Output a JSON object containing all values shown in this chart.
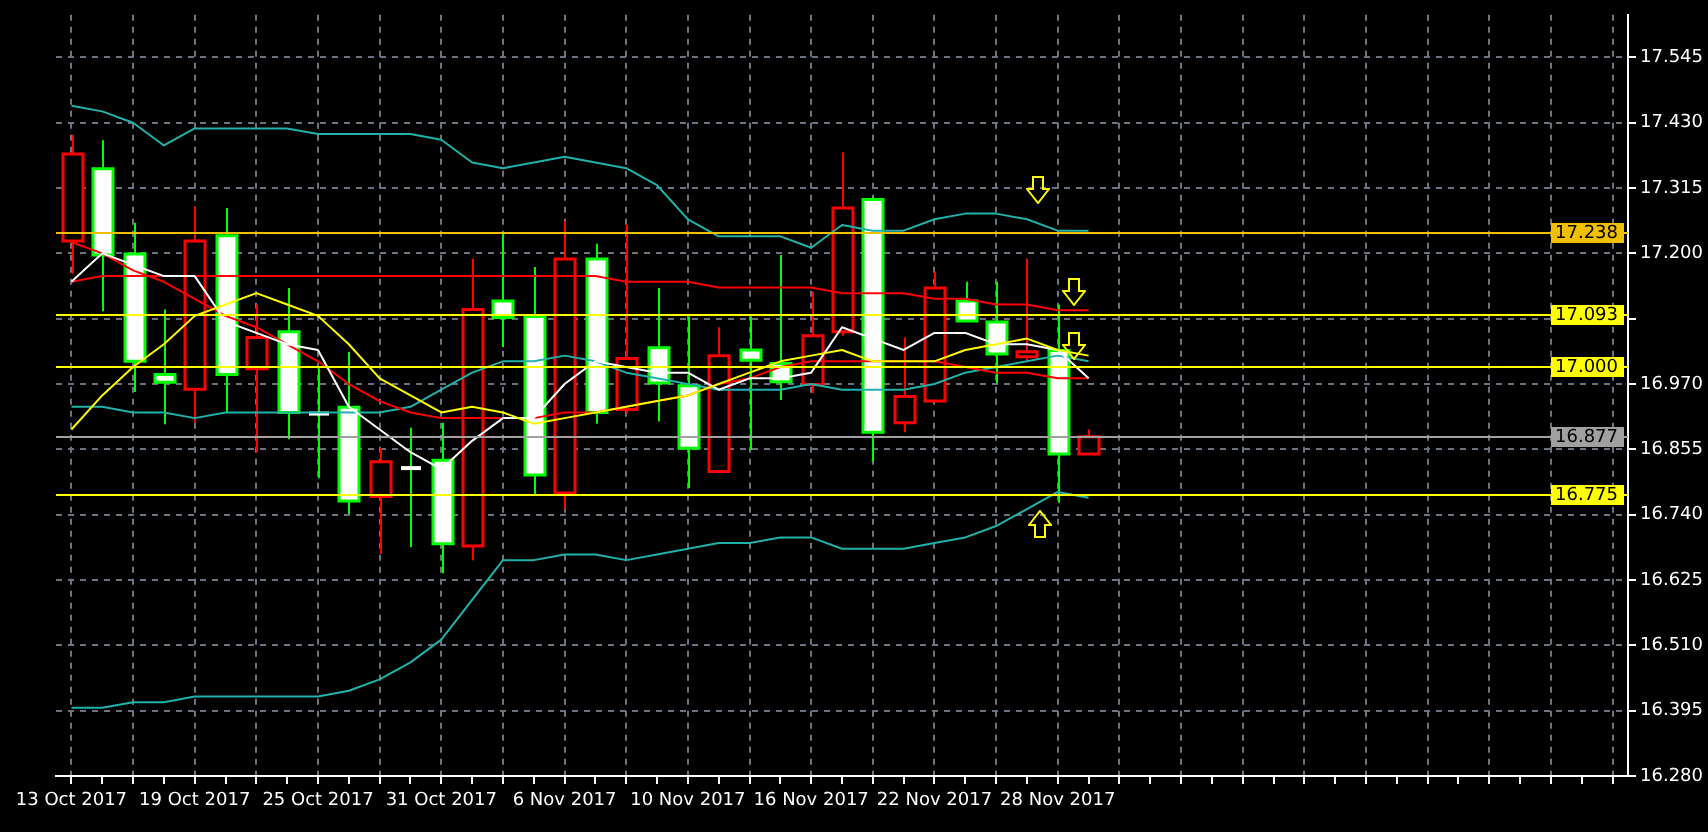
{
  "chart_data": {
    "type": "candlestick",
    "categories": [
      "13 Oct 2017",
      null,
      null,
      null,
      "19 Oct 2017",
      null,
      null,
      null,
      "25 Oct 2017",
      null,
      null,
      null,
      "31 Oct 2017",
      null,
      null,
      null,
      "6 Nov 2017",
      null,
      null,
      null,
      "10 Nov 2017",
      null,
      null,
      null,
      "16 Nov 2017",
      null,
      null,
      null,
      "22 Nov 2017",
      null,
      null,
      null,
      "28 Nov 2017",
      null
    ],
    "ohlc": [
      [
        17.222,
        17.409,
        17.164,
        17.375
      ],
      [
        17.349,
        17.399,
        17.098,
        17.197
      ],
      [
        17.199,
        17.254,
        16.956,
        17.01
      ],
      [
        16.987,
        17.101,
        16.899,
        16.973
      ],
      [
        16.961,
        17.283,
        16.902,
        17.222
      ],
      [
        17.231,
        17.28,
        16.92,
        16.987
      ],
      [
        16.997,
        17.11,
        16.85,
        17.052
      ],
      [
        17.062,
        17.139,
        16.873,
        16.92
      ],
      [
        16.918,
        16.998,
        16.804,
        16.916
      ],
      [
        16.929,
        17.027,
        16.741,
        16.764
      ],
      [
        16.772,
        16.858,
        16.671,
        16.833
      ],
      [
        16.822,
        16.893,
        16.683,
        16.821
      ],
      [
        16.836,
        16.902,
        16.637,
        16.689
      ],
      [
        16.685,
        17.191,
        16.66,
        17.101
      ],
      [
        17.116,
        17.237,
        17.035,
        17.087
      ],
      [
        17.089,
        17.176,
        16.775,
        16.81
      ],
      [
        16.778,
        17.257,
        16.749,
        17.19
      ],
      [
        17.19,
        17.217,
        16.9,
        16.92
      ],
      [
        16.925,
        17.251,
        16.918,
        17.015
      ],
      [
        17.034,
        17.139,
        16.904,
        16.972
      ],
      [
        16.967,
        17.089,
        16.787,
        16.857
      ],
      [
        16.816,
        17.07,
        16.814,
        17.02
      ],
      [
        17.03,
        17.089,
        16.854,
        17.012
      ],
      [
        17.006,
        17.197,
        16.942,
        16.974
      ],
      [
        16.969,
        17.133,
        16.954,
        17.055
      ],
      [
        17.062,
        17.378,
        17.055,
        17.28
      ],
      [
        17.295,
        17.3,
        16.833,
        16.885
      ],
      [
        16.902,
        17.052,
        16.885,
        16.948
      ],
      [
        16.94,
        17.168,
        16.938,
        17.139
      ],
      [
        17.116,
        17.15,
        17.079,
        17.081
      ],
      [
        17.079,
        17.15,
        16.972,
        17.023
      ],
      [
        17.018,
        17.191,
        17.012,
        17.027
      ],
      [
        17.029,
        17.11,
        16.761,
        16.847
      ],
      [
        16.847,
        16.89,
        16.846,
        16.877
      ]
    ],
    "colors": [
      "#000000",
      "#ffffff",
      "#ffffff",
      "#ffffff",
      "#000000",
      "#ffffff",
      "#000000",
      "#ffffff",
      "#ffffff",
      "#ffffff",
      "#000000",
      "#ffffff",
      "#ffffff",
      "#000000",
      "#ffffff",
      "#ffffff",
      "#000000",
      "#ffffff",
      "#000000",
      "#ffffff",
      "#ffffff",
      "#000000",
      "#ffffff",
      "#ffffff",
      "#000000",
      "#000000",
      "#ffffff",
      "#000000",
      "#000000",
      "#ffffff",
      "#ffffff",
      "#000000",
      "#ffffff",
      "#000000"
    ],
    "series": [
      {
        "type": "line",
        "color": "#20b2aa",
        "values": [
          17.46,
          17.45,
          17.43,
          17.39,
          17.42,
          17.42,
          17.42,
          17.42,
          17.41,
          17.41,
          17.41,
          17.41,
          17.4,
          17.36,
          17.35,
          17.36,
          17.37,
          17.36,
          17.35,
          17.32,
          17.26,
          17.23,
          17.23,
          17.23,
          17.21,
          17.25,
          17.24,
          17.24,
          17.26,
          17.27,
          17.27,
          17.26,
          17.24,
          17.24
        ]
      },
      {
        "type": "line",
        "color": "#20b2aa",
        "values": [
          16.93,
          16.93,
          16.92,
          16.92,
          16.91,
          16.92,
          16.92,
          16.92,
          16.92,
          16.92,
          16.92,
          16.93,
          16.96,
          16.99,
          17.01,
          17.01,
          17.02,
          17.01,
          16.99,
          16.98,
          16.97,
          16.96,
          16.96,
          16.96,
          16.97,
          16.96,
          16.96,
          16.96,
          16.97,
          16.99,
          17.0,
          17.01,
          17.02,
          17.01
        ]
      },
      {
        "type": "line",
        "color": "#20b2aa",
        "values": [
          16.4,
          16.4,
          16.41,
          16.41,
          16.42,
          16.42,
          16.42,
          16.42,
          16.42,
          16.43,
          16.45,
          16.48,
          16.52,
          16.59,
          16.66,
          16.66,
          16.67,
          16.67,
          16.66,
          16.67,
          16.68,
          16.69,
          16.69,
          16.7,
          16.7,
          16.68,
          16.68,
          16.68,
          16.69,
          16.7,
          16.72,
          16.75,
          16.78,
          16.77
        ]
      },
      {
        "type": "line",
        "color": "#ff0000",
        "values": [
          17.15,
          17.16,
          17.16,
          17.16,
          17.16,
          17.16,
          17.16,
          17.16,
          17.16,
          17.16,
          17.16,
          17.16,
          17.16,
          17.16,
          17.16,
          17.16,
          17.16,
          17.16,
          17.15,
          17.15,
          17.15,
          17.14,
          17.14,
          17.14,
          17.14,
          17.13,
          17.13,
          17.13,
          17.12,
          17.12,
          17.11,
          17.11,
          17.1,
          17.1
        ]
      },
      {
        "type": "line",
        "color": "#ff0000",
        "values": [
          17.22,
          17.2,
          17.17,
          17.15,
          17.12,
          17.09,
          17.07,
          17.04,
          17.01,
          16.97,
          16.94,
          16.92,
          16.91,
          16.91,
          16.91,
          16.91,
          16.92,
          16.92,
          16.93,
          16.94,
          16.95,
          16.97,
          16.98,
          17.0,
          17.01,
          17.01,
          17.01,
          17.01,
          17.01,
          17.0,
          16.99,
          16.99,
          16.98,
          16.98
        ]
      },
      {
        "type": "line",
        "color": "#ffffff",
        "values": [
          17.15,
          17.2,
          17.18,
          17.16,
          17.16,
          17.08,
          17.06,
          17.04,
          17.03,
          16.93,
          16.89,
          16.85,
          16.82,
          16.87,
          16.91,
          16.91,
          16.97,
          17.01,
          17.0,
          16.99,
          16.99,
          16.96,
          16.98,
          16.98,
          16.99,
          17.07,
          17.05,
          17.03,
          17.06,
          17.06,
          17.04,
          17.04,
          17.03,
          16.98
        ]
      },
      {
        "type": "line",
        "color": "#ffff00",
        "values": [
          16.89,
          16.95,
          17.0,
          17.04,
          17.09,
          17.11,
          17.13,
          17.11,
          17.09,
          17.04,
          16.98,
          16.95,
          16.92,
          16.93,
          16.92,
          16.9,
          16.91,
          16.92,
          16.93,
          16.94,
          16.95,
          16.97,
          16.99,
          17.01,
          17.02,
          17.03,
          17.01,
          17.01,
          17.01,
          17.03,
          17.04,
          17.05,
          17.03,
          17.02
        ]
      }
    ],
    "ylim": [
      16.28,
      17.62
    ],
    "yticks": [
      {
        "value": 16.28,
        "label": "16.280"
      },
      {
        "value": 16.395,
        "label": "16.395"
      },
      {
        "value": 16.51,
        "label": "16.510"
      },
      {
        "value": 16.625,
        "label": "16.625"
      },
      {
        "value": 16.74,
        "label": "16.740"
      },
      {
        "value": 16.855,
        "label": "16.855"
      },
      {
        "value": 16.97,
        "label": "16.970"
      },
      {
        "value": 17.085,
        "label": null
      },
      {
        "value": 17.2,
        "label": "17.200"
      },
      {
        "value": 17.315,
        "label": "17.315"
      },
      {
        "value": 17.43,
        "label": "17.430"
      },
      {
        "value": 17.545,
        "label": "17.545"
      }
    ],
    "ref_lines": [
      {
        "axis": "y",
        "value": 17.238,
        "label": "17.238",
        "color": "#f0c000"
      },
      {
        "axis": "y",
        "value": 17.093,
        "label": "17.093",
        "color": "#ffff00"
      },
      {
        "axis": "y",
        "value": 17.0,
        "label": "17.000",
        "color": "#ffff00"
      },
      {
        "axis": "y",
        "value": 16.877,
        "label": "16.877",
        "color": "#a0a0a0"
      },
      {
        "axis": "y",
        "value": 16.775,
        "label": "16.775",
        "color": "#ffff00"
      }
    ],
    "grid": true,
    "legend": false
  }
}
